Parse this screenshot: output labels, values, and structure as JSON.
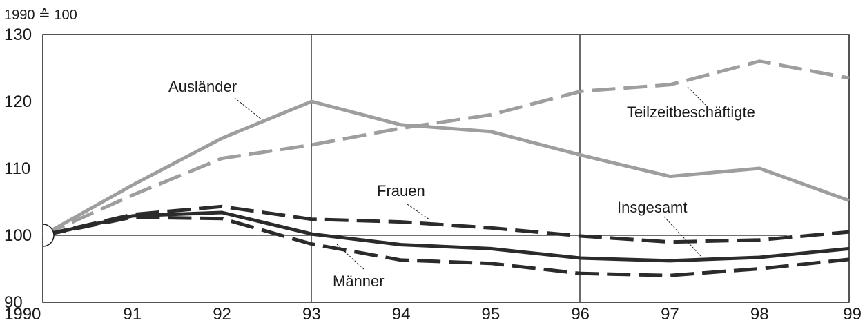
{
  "chart_data": {
    "type": "line",
    "unit_label": "1990 ≙ 100",
    "x": [
      "1990",
      "91",
      "92",
      "93",
      "94",
      "95",
      "96",
      "97",
      "98",
      "99"
    ],
    "y_ticks": [
      "130",
      "120",
      "110",
      "100",
      "90"
    ],
    "ylim": [
      90,
      130
    ],
    "grid": false,
    "series": [
      {
        "name": "Ausländer",
        "values": [
          100,
          107.5,
          114.5,
          120,
          116.5,
          115.5,
          112,
          108.8,
          110,
          105.2
        ],
        "color": "#9e9e9e",
        "style": "solid"
      },
      {
        "name": "Teilzeitbeschäftigte",
        "values": [
          100,
          106,
          111.5,
          113.5,
          116,
          118,
          121.5,
          122.5,
          126,
          123.5
        ],
        "color": "#9e9e9e",
        "style": "dashed"
      },
      {
        "name": "Frauen",
        "values": [
          100,
          103.1,
          104.3,
          102.4,
          102,
          101.1,
          99.9,
          99,
          99.3,
          100.5
        ],
        "color": "#2b2b2b",
        "style": "dashed"
      },
      {
        "name": "Insgesamt",
        "values": [
          100,
          102.9,
          103.4,
          100.2,
          98.6,
          98,
          96.6,
          96.2,
          96.7,
          98
        ],
        "color": "#2b2b2b",
        "style": "solid"
      },
      {
        "name": "Männer",
        "values": [
          100,
          102.7,
          102.5,
          98.7,
          96.3,
          95.8,
          94.3,
          94,
          95,
          96.4
        ],
        "color": "#2b2b2b",
        "style": "dashed"
      }
    ]
  }
}
